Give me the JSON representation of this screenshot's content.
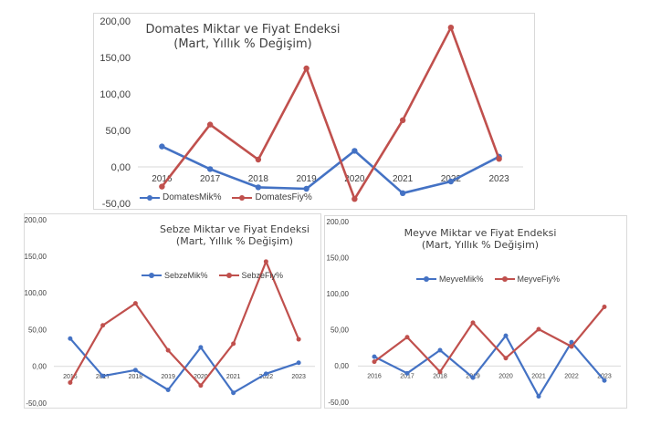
{
  "colors": {
    "miktar": "#4472c4",
    "fiyat": "#c0504d",
    "axis_text": "#404040",
    "zero_line": "#d9d9d9"
  },
  "chart_data": [
    {
      "type": "line",
      "title_line1": "Domates Miktar ve Fiyat Endeksi",
      "title_line2": "(Mart, Yıllık % Değişim)",
      "x": [
        "2016",
        "2017",
        "2018",
        "2019",
        "2020",
        "2021",
        "2022",
        "2023"
      ],
      "ylim": [
        -50,
        200
      ],
      "yticks": [
        "-50,00",
        "0,00",
        "50,00",
        "100,00",
        "150,00",
        "200,00"
      ],
      "legend_position": "bottom-left",
      "series": [
        {
          "name": "DomatesMik%",
          "color": "#4472c4",
          "values": [
            28,
            -3,
            -28,
            -30,
            22,
            -36,
            -20,
            14
          ]
        },
        {
          "name": "DomatesFiy%",
          "color": "#c0504d",
          "values": [
            -27,
            58,
            10,
            135,
            -44,
            64,
            191,
            11
          ]
        }
      ]
    },
    {
      "type": "line",
      "title_line1": "Sebze Miktar ve Fiyat Endeksi",
      "title_line2": "(Mart, Yıllık % Değişim)",
      "x": [
        "2016",
        "2017",
        "2018",
        "2019",
        "2020",
        "2021",
        "2022",
        "2023"
      ],
      "ylim": [
        -50,
        200
      ],
      "yticks": [
        "-50,00",
        "0,00",
        "50,00",
        "100,00",
        "150,00",
        "200,00"
      ],
      "legend_position": "top",
      "series": [
        {
          "name": "SebzeMik%",
          "color": "#4472c4",
          "values": [
            38,
            -13,
            -5,
            -32,
            26,
            -36,
            -10,
            5
          ]
        },
        {
          "name": "SebzeFiy%",
          "color": "#c0504d",
          "values": [
            -22,
            56,
            86,
            22,
            -26,
            31,
            143,
            37
          ]
        }
      ]
    },
    {
      "type": "line",
      "title_line1": "Meyve Miktar ve Fiyat Endeksi",
      "title_line2": "(Mart, Yıllık % Değişim)",
      "x": [
        "2016",
        "2017",
        "2018",
        "2019",
        "2020",
        "2021",
        "2022",
        "2023"
      ],
      "ylim": [
        -50,
        200
      ],
      "yticks": [
        "-50,00",
        "0,00",
        "50,00",
        "100,00",
        "150,00",
        "200,00"
      ],
      "legend_position": "top",
      "series": [
        {
          "name": "MeyveMik%",
          "color": "#4472c4",
          "values": [
            13,
            -10,
            22,
            -16,
            42,
            -42,
            33,
            -20
          ]
        },
        {
          "name": "MeyveFiy%",
          "color": "#c0504d",
          "values": [
            6,
            40,
            -8,
            60,
            11,
            51,
            27,
            82
          ]
        }
      ]
    }
  ]
}
